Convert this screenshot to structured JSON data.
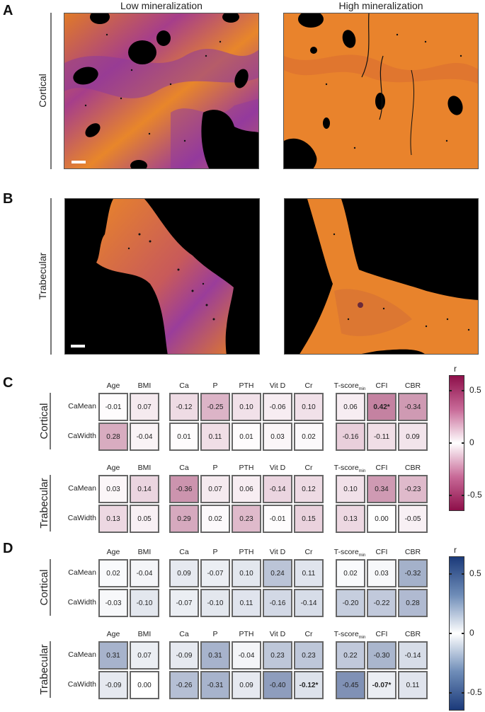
{
  "panels": {
    "A": {
      "label": "A",
      "row_label": "Cortical"
    },
    "B": {
      "label": "B",
      "row_label": "Trabecular"
    },
    "C": {
      "label": "C"
    },
    "D": {
      "label": "D"
    }
  },
  "column_titles": [
    "Low mineralization",
    "High mineralization"
  ],
  "images": [
    {
      "panel": "A",
      "condition": "Low mineralization",
      "site": "Cortical",
      "has_scalebar": true
    },
    {
      "panel": "A",
      "condition": "High mineralization",
      "site": "Cortical",
      "has_scalebar": false
    },
    {
      "panel": "B",
      "condition": "Low mineralization",
      "site": "Trabecular",
      "has_scalebar": true
    },
    {
      "panel": "B",
      "condition": "High mineralization",
      "site": "Trabecular",
      "has_scalebar": false
    }
  ],
  "heatmap_columns": [
    "Age",
    "BMI",
    "Ca",
    "P",
    "PTH",
    "Vit D",
    "Cr",
    "T-score",
    "CFI",
    "CBR"
  ],
  "tscore_subscript": "min",
  "row_labels": [
    "CaMean",
    "CaWidth"
  ],
  "group_labels": [
    "Cortical",
    "Trabecular"
  ],
  "colorbar": {
    "title": "r",
    "ticks": [
      "0.5",
      "0",
      "-0.5"
    ]
  },
  "colors": {
    "C_high": "#8e0f4a",
    "C_low": "#ffffff",
    "D_high": "#1b3a7a",
    "D_low": "#ffffff"
  },
  "chart_data": [
    {
      "type": "heatmap",
      "title": "C",
      "colorbar_label": "r",
      "colorbar_range": [
        -0.65,
        0.65
      ],
      "colormap": "magenta (magnitude)",
      "columns": [
        "Age",
        "BMI",
        "Ca",
        "P",
        "PTH",
        "Vit D",
        "Cr",
        "T-score_min",
        "CFI",
        "CBR"
      ],
      "groups": [
        {
          "name": "Cortical",
          "rows": [
            {
              "name": "CaMean",
              "values": [
                -0.01,
                0.07,
                -0.12,
                -0.25,
                0.1,
                -0.06,
                0.1,
                0.06,
                0.42,
                -0.34
              ],
              "significant": [
                false,
                false,
                false,
                false,
                false,
                false,
                false,
                false,
                true,
                false
              ]
            },
            {
              "name": "CaWidth",
              "values": [
                0.28,
                -0.04,
                0.01,
                0.11,
                0.01,
                0.03,
                0.02,
                -0.16,
                -0.11,
                0.09
              ],
              "significant": [
                false,
                false,
                false,
                false,
                false,
                false,
                false,
                false,
                false,
                false
              ]
            }
          ]
        },
        {
          "name": "Trabecular",
          "rows": [
            {
              "name": "CaMean",
              "values": [
                0.03,
                0.14,
                -0.36,
                0.07,
                0.06,
                -0.14,
                0.12,
                0.1,
                0.34,
                -0.23
              ],
              "significant": [
                false,
                false,
                false,
                false,
                false,
                false,
                false,
                false,
                false,
                false
              ]
            },
            {
              "name": "CaWidth",
              "values": [
                0.13,
                0.05,
                0.29,
                0.02,
                0.23,
                -0.01,
                0.15,
                0.13,
                0.0,
                -0.05
              ],
              "significant": [
                false,
                false,
                false,
                false,
                false,
                false,
                false,
                false,
                false,
                false
              ]
            }
          ]
        }
      ]
    },
    {
      "type": "heatmap",
      "title": "D",
      "colorbar_label": "r",
      "colorbar_range": [
        -0.65,
        0.65
      ],
      "colormap": "blue (magnitude)",
      "columns": [
        "Age",
        "BMI",
        "Ca",
        "P",
        "PTH",
        "Vit D",
        "Cr",
        "T-score_min",
        "CFI",
        "CBR"
      ],
      "groups": [
        {
          "name": "Cortical",
          "rows": [
            {
              "name": "CaMean",
              "values": [
                0.02,
                -0.04,
                0.09,
                -0.07,
                0.1,
                0.24,
                0.11,
                0.02,
                0.03,
                -0.32
              ],
              "significant": [
                false,
                false,
                false,
                false,
                false,
                false,
                false,
                false,
                false,
                false
              ]
            },
            {
              "name": "CaWidth",
              "values": [
                -0.03,
                -0.1,
                -0.07,
                -0.1,
                0.11,
                -0.16,
                -0.14,
                -0.2,
                -0.22,
                0.28
              ],
              "significant": [
                false,
                false,
                false,
                false,
                false,
                false,
                false,
                false,
                false,
                false
              ]
            }
          ]
        },
        {
          "name": "Trabecular",
          "rows": [
            {
              "name": "CaMean",
              "values": [
                0.31,
                0.07,
                -0.09,
                0.31,
                -0.04,
                0.23,
                0.23,
                0.22,
                -0.3,
                -0.14
              ],
              "significant": [
                false,
                false,
                false,
                false,
                false,
                false,
                false,
                false,
                false,
                false
              ]
            },
            {
              "name": "CaWidth",
              "values": [
                -0.09,
                0.0,
                -0.26,
                -0.31,
                0.09,
                -0.4,
                -0.12,
                -0.45,
                -0.07,
                0.11
              ],
              "significant": [
                false,
                false,
                false,
                false,
                false,
                false,
                true,
                false,
                true,
                false
              ]
            }
          ]
        }
      ]
    }
  ]
}
